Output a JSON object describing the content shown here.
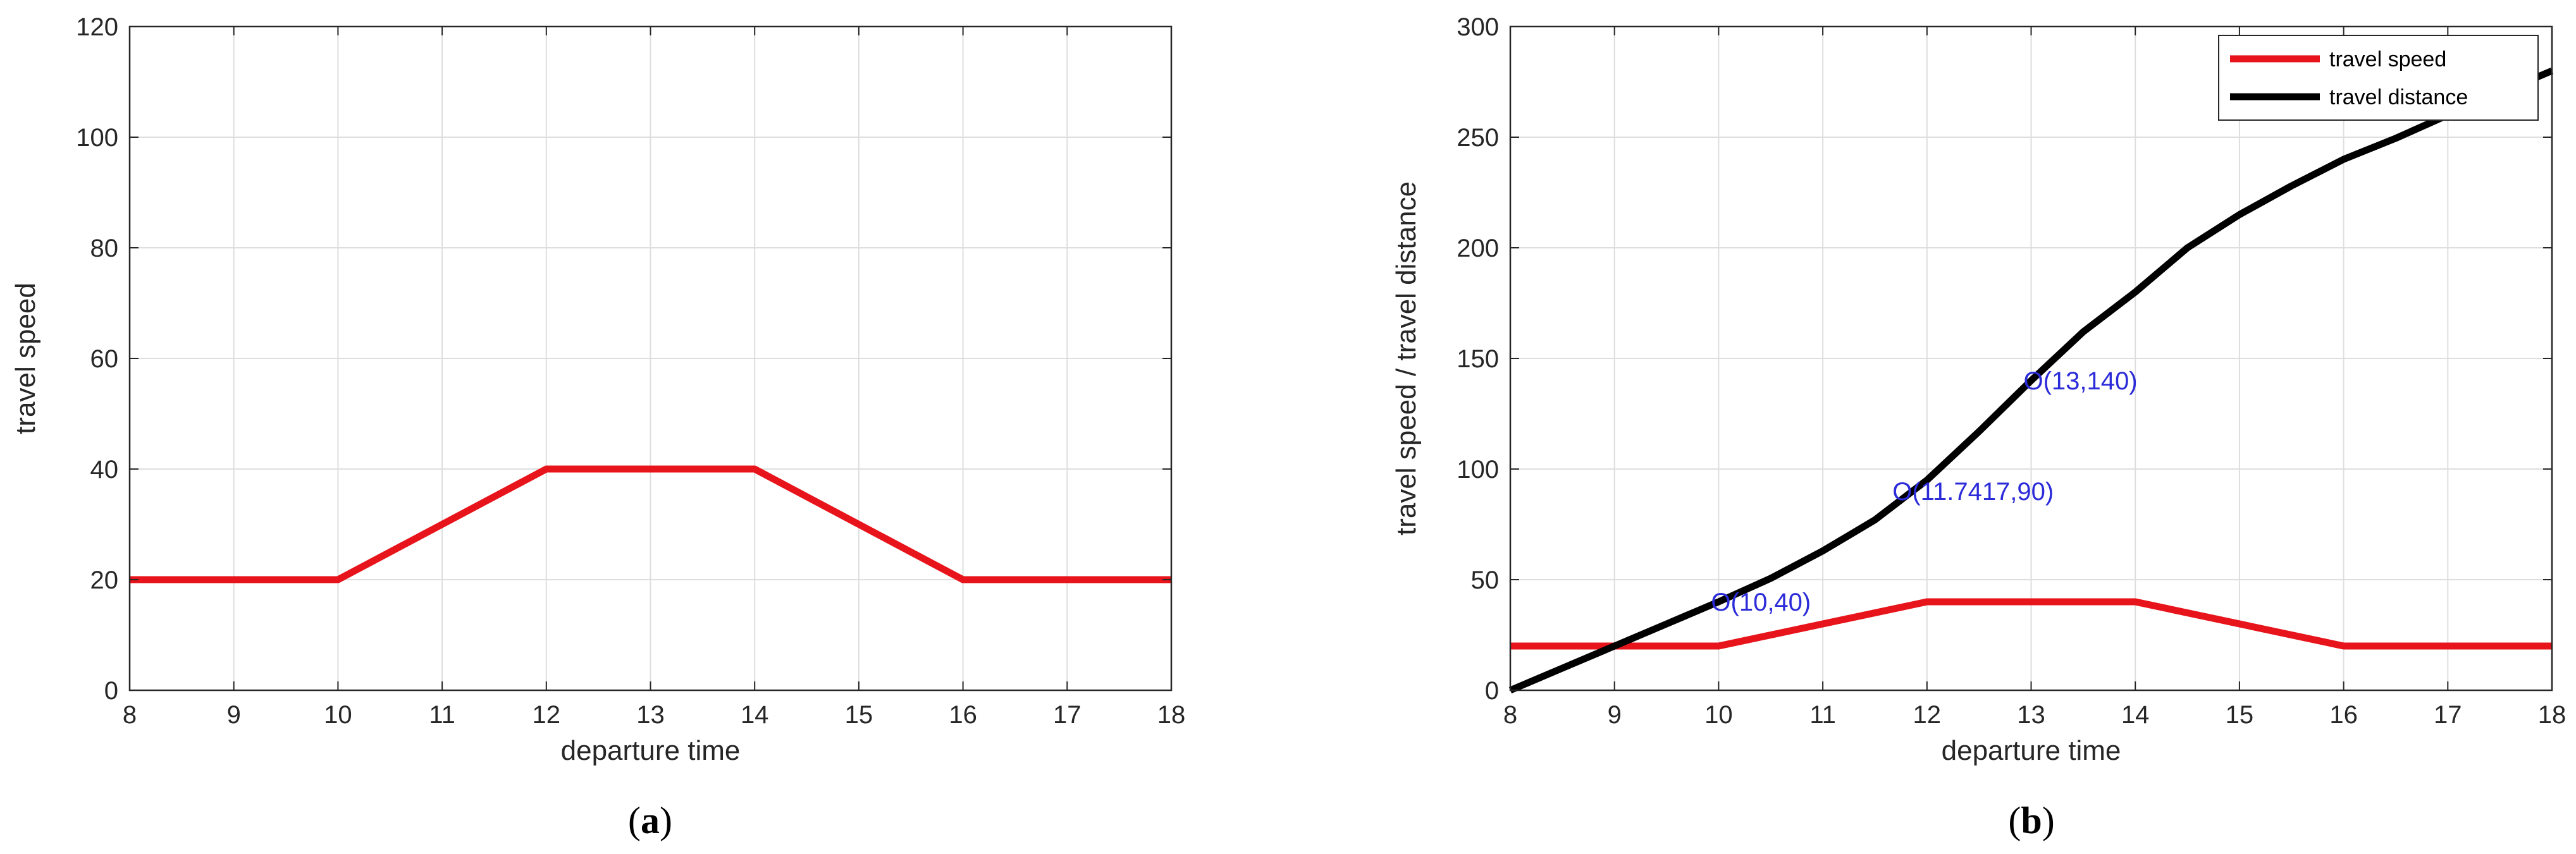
{
  "chart_data": [
    {
      "type": "line",
      "caption": "(a)",
      "xlabel": "departure time",
      "ylabel": "travel speed",
      "xlim": [
        8,
        18
      ],
      "ylim": [
        0,
        120
      ],
      "xticks": [
        8,
        9,
        10,
        11,
        12,
        13,
        14,
        15,
        16,
        17,
        18
      ],
      "yticks": [
        0,
        20,
        40,
        60,
        80,
        100,
        120
      ],
      "grid": true,
      "legend": null,
      "series": [
        {
          "color": "#e8141b",
          "x": [
            8,
            10,
            12,
            14,
            16,
            18
          ],
          "y": [
            20,
            20,
            40,
            40,
            20,
            20
          ]
        }
      ],
      "annotations": []
    },
    {
      "type": "line",
      "caption": "(b)",
      "xlabel": "departure time",
      "ylabel": "travel speed / travel distance",
      "xlim": [
        8,
        18
      ],
      "ylim": [
        0,
        300
      ],
      "xticks": [
        8,
        9,
        10,
        11,
        12,
        13,
        14,
        15,
        16,
        17,
        18
      ],
      "yticks": [
        0,
        50,
        100,
        150,
        200,
        250,
        300
      ],
      "grid": true,
      "legend": "top-right",
      "series": [
        {
          "name": "travel speed",
          "color": "#e8141b",
          "x": [
            8,
            10,
            12,
            14,
            16,
            18
          ],
          "y": [
            20,
            20,
            40,
            40,
            20,
            20
          ]
        },
        {
          "name": "travel distance",
          "color": "#000000",
          "x": [
            8,
            8.5,
            9,
            9.5,
            10,
            10.5,
            11,
            11.5,
            12,
            12.5,
            13,
            13.5,
            14,
            14.5,
            15,
            15.5,
            16,
            16.5,
            17,
            17.5,
            18
          ],
          "y": [
            0,
            10,
            20,
            30,
            40,
            50.6,
            63,
            77,
            95,
            117,
            140,
            162,
            180,
            200,
            215,
            228,
            240,
            249.5,
            260,
            270,
            280
          ]
        }
      ],
      "annotations": [
        {
          "label": "O(10,40)",
          "x": 10,
          "y": 40
        },
        {
          "label": "O(11.7417,90)",
          "x": 11.7417,
          "y": 90
        },
        {
          "label": "O(13,140)",
          "x": 13,
          "y": 140
        }
      ]
    }
  ]
}
